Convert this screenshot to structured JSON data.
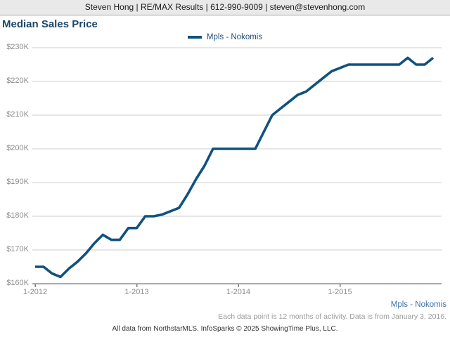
{
  "header": {
    "contact_line": "Steven Hong | RE/MAX Results | 612-990-9009 | steven@stevenhong.com"
  },
  "title": "Median Sales Price",
  "legend": {
    "label": "Mpls - Nokomis"
  },
  "colors": {
    "line": "#0f527f",
    "title_navy": "#1c4668",
    "legend_text": "#1f4e79",
    "grid": "#cccccc",
    "axis": "#7f7f7f",
    "tick_label": "#8c8c8c",
    "footer_series": "#3d74a8",
    "footer_note": "#9a9a9a",
    "header_bg": "#e9e9e9"
  },
  "chart_data": {
    "type": "line",
    "title": "Median Sales Price",
    "xlabel": "",
    "ylabel": "",
    "grid": "horizontal",
    "legend_position": "top-center",
    "ylim": [
      160,
      230
    ],
    "ytick_step": 10,
    "ytick_labels": [
      "$160K",
      "$170K",
      "$180K",
      "$190K",
      "$200K",
      "$210K",
      "$220K",
      "$230K"
    ],
    "xtick_labels": [
      "1-2012",
      "1-2013",
      "1-2014",
      "1-2015"
    ],
    "xtick_month_index": [
      0,
      12,
      24,
      36
    ],
    "categories": [
      "1-2012",
      "2-2012",
      "3-2012",
      "4-2012",
      "5-2012",
      "6-2012",
      "7-2012",
      "8-2012",
      "9-2012",
      "10-2012",
      "11-2012",
      "12-2012",
      "1-2013",
      "2-2013",
      "3-2013",
      "4-2013",
      "5-2013",
      "6-2013",
      "7-2013",
      "8-2013",
      "9-2013",
      "10-2013",
      "11-2013",
      "12-2013",
      "1-2014",
      "2-2014",
      "3-2014",
      "4-2014",
      "5-2014",
      "6-2014",
      "7-2014",
      "8-2014",
      "9-2014",
      "10-2014",
      "11-2014",
      "12-2014",
      "1-2015",
      "2-2015",
      "3-2015",
      "4-2015",
      "5-2015",
      "6-2015",
      "7-2015",
      "8-2015",
      "9-2015",
      "10-2015",
      "11-2015",
      "12-2015"
    ],
    "series": [
      {
        "name": "Mpls - Nokomis",
        "unit": "USD thousands",
        "values": [
          165,
          165,
          163,
          162,
          164.5,
          166.5,
          169,
          172,
          174.5,
          173,
          173,
          176.5,
          176.5,
          180,
          180,
          180.5,
          181.5,
          182.5,
          186.5,
          191,
          195,
          200,
          200,
          200,
          200,
          200,
          200,
          205,
          210,
          212,
          214,
          216,
          217,
          219,
          221,
          223,
          224,
          225,
          225,
          225,
          225,
          225,
          225,
          225,
          227,
          225,
          225,
          227
        ]
      }
    ]
  },
  "footer": {
    "series_label": "Mpls - Nokomis",
    "note": "Each data point is 12 months of activity. Data is from January 3, 2016.",
    "attribution": "All data from NorthstarMLS. InfoSparks © 2025 ShowingTime Plus, LLC."
  }
}
